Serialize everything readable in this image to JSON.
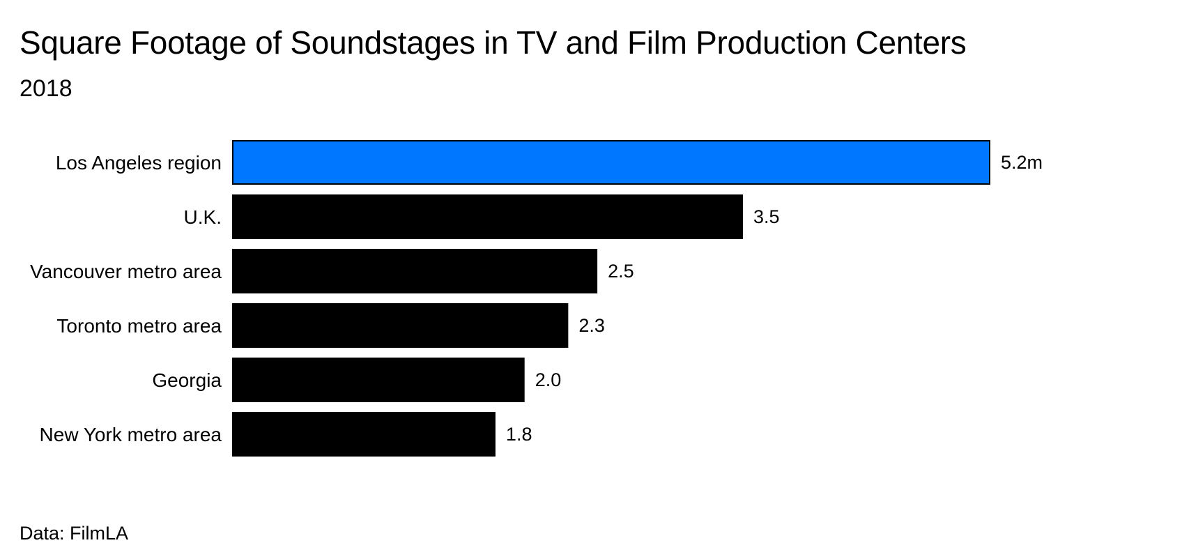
{
  "header": {
    "title": "Square Footage of Soundstages in TV and Film Production Centers",
    "subtitle": "2018"
  },
  "chart_data": {
    "type": "bar",
    "orientation": "horizontal",
    "categories": [
      "Los Angeles region",
      "U.K.",
      "Vancouver metro area",
      "Toronto metro area",
      "Georgia",
      "New York metro area"
    ],
    "values": [
      5.2,
      3.5,
      2.5,
      2.3,
      2.0,
      1.8
    ],
    "value_labels": [
      "5.2m",
      "3.5",
      "2.5",
      "2.3",
      "2.0",
      "1.8"
    ],
    "unit": "m",
    "highlight_index": 0,
    "colors": {
      "highlight": "#0077ff",
      "default": "#000000"
    },
    "xlim": [
      0,
      5.2
    ],
    "grid": false,
    "legend": "none"
  },
  "footer": {
    "source": "Data: FilmLA"
  }
}
